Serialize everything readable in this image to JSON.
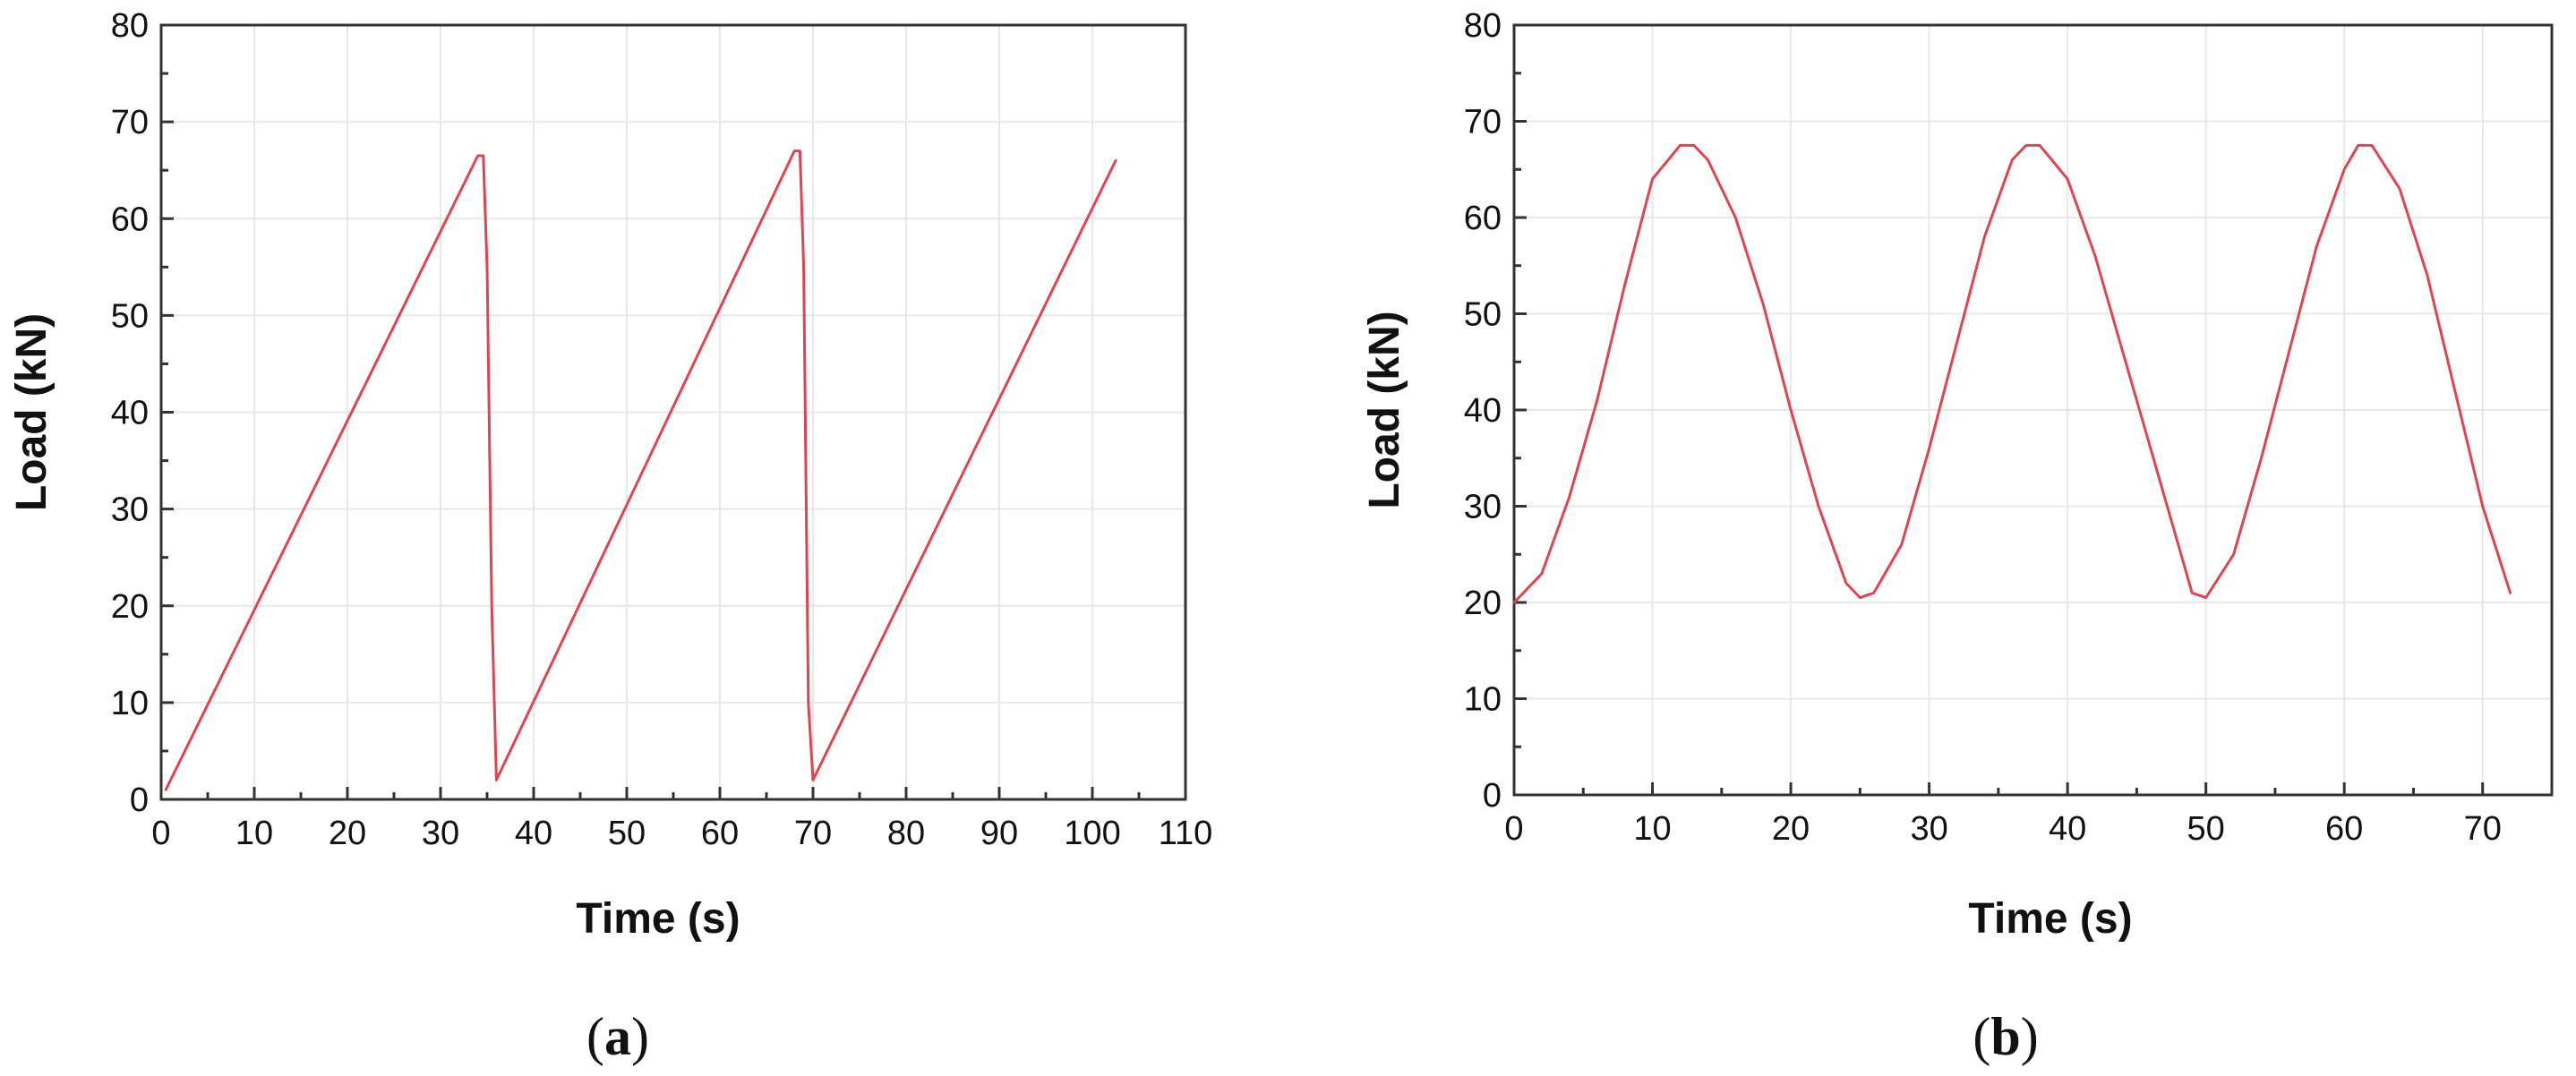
{
  "colors": {
    "series": "#e0454f",
    "frame": "#333333",
    "grid": "#e8e8e8",
    "text": "#111111"
  },
  "chart_data": [
    {
      "type": "line",
      "panel_label": "a",
      "title": "",
      "xlabel": "Time (s)",
      "ylabel": "Load (kN)",
      "xlim": [
        0,
        110
      ],
      "ylim": [
        0,
        80
      ],
      "xticks": [
        0,
        10,
        20,
        30,
        40,
        50,
        60,
        70,
        80,
        90,
        100,
        110
      ],
      "yticks": [
        0,
        10,
        20,
        30,
        40,
        50,
        60,
        70,
        80
      ],
      "grid": true,
      "series": [
        {
          "x": [
            0.5,
            34,
            34.6,
            35,
            35.5,
            36,
            68,
            68.6,
            69,
            69.5,
            70,
            102.5
          ],
          "y": [
            1,
            66.5,
            66.5,
            55,
            20,
            2,
            67,
            67,
            55,
            10,
            2,
            66
          ]
        }
      ]
    },
    {
      "type": "line",
      "panel_label": "b",
      "title": "",
      "xlabel": "Time (s)",
      "ylabel": "Load (kN)",
      "xlim": [
        0,
        75
      ],
      "ylim": [
        0,
        80
      ],
      "xticks": [
        0,
        10,
        20,
        30,
        40,
        50,
        60,
        70
      ],
      "yticks": [
        0,
        10,
        20,
        30,
        40,
        50,
        60,
        70,
        80
      ],
      "grid": true,
      "series": [
        {
          "x": [
            0,
            2,
            4,
            6,
            8,
            10,
            12,
            13,
            14,
            16,
            18,
            20,
            22,
            24,
            25,
            26,
            28,
            30,
            32,
            34,
            36,
            37,
            38,
            40,
            42,
            44,
            46,
            48,
            49,
            50,
            52,
            54,
            56,
            58,
            60,
            61,
            62,
            64,
            66,
            68,
            70,
            72
          ],
          "y": [
            20,
            23,
            31,
            41,
            53,
            64,
            67.5,
            67.5,
            66,
            60,
            51,
            40,
            30,
            22,
            20.5,
            21,
            26,
            36,
            47,
            58,
            66,
            67.5,
            67.5,
            64,
            56,
            46,
            36,
            26,
            21,
            20.5,
            25,
            35,
            46,
            57,
            65,
            67.5,
            67.5,
            63,
            54,
            42,
            30,
            21
          ]
        }
      ]
    }
  ]
}
